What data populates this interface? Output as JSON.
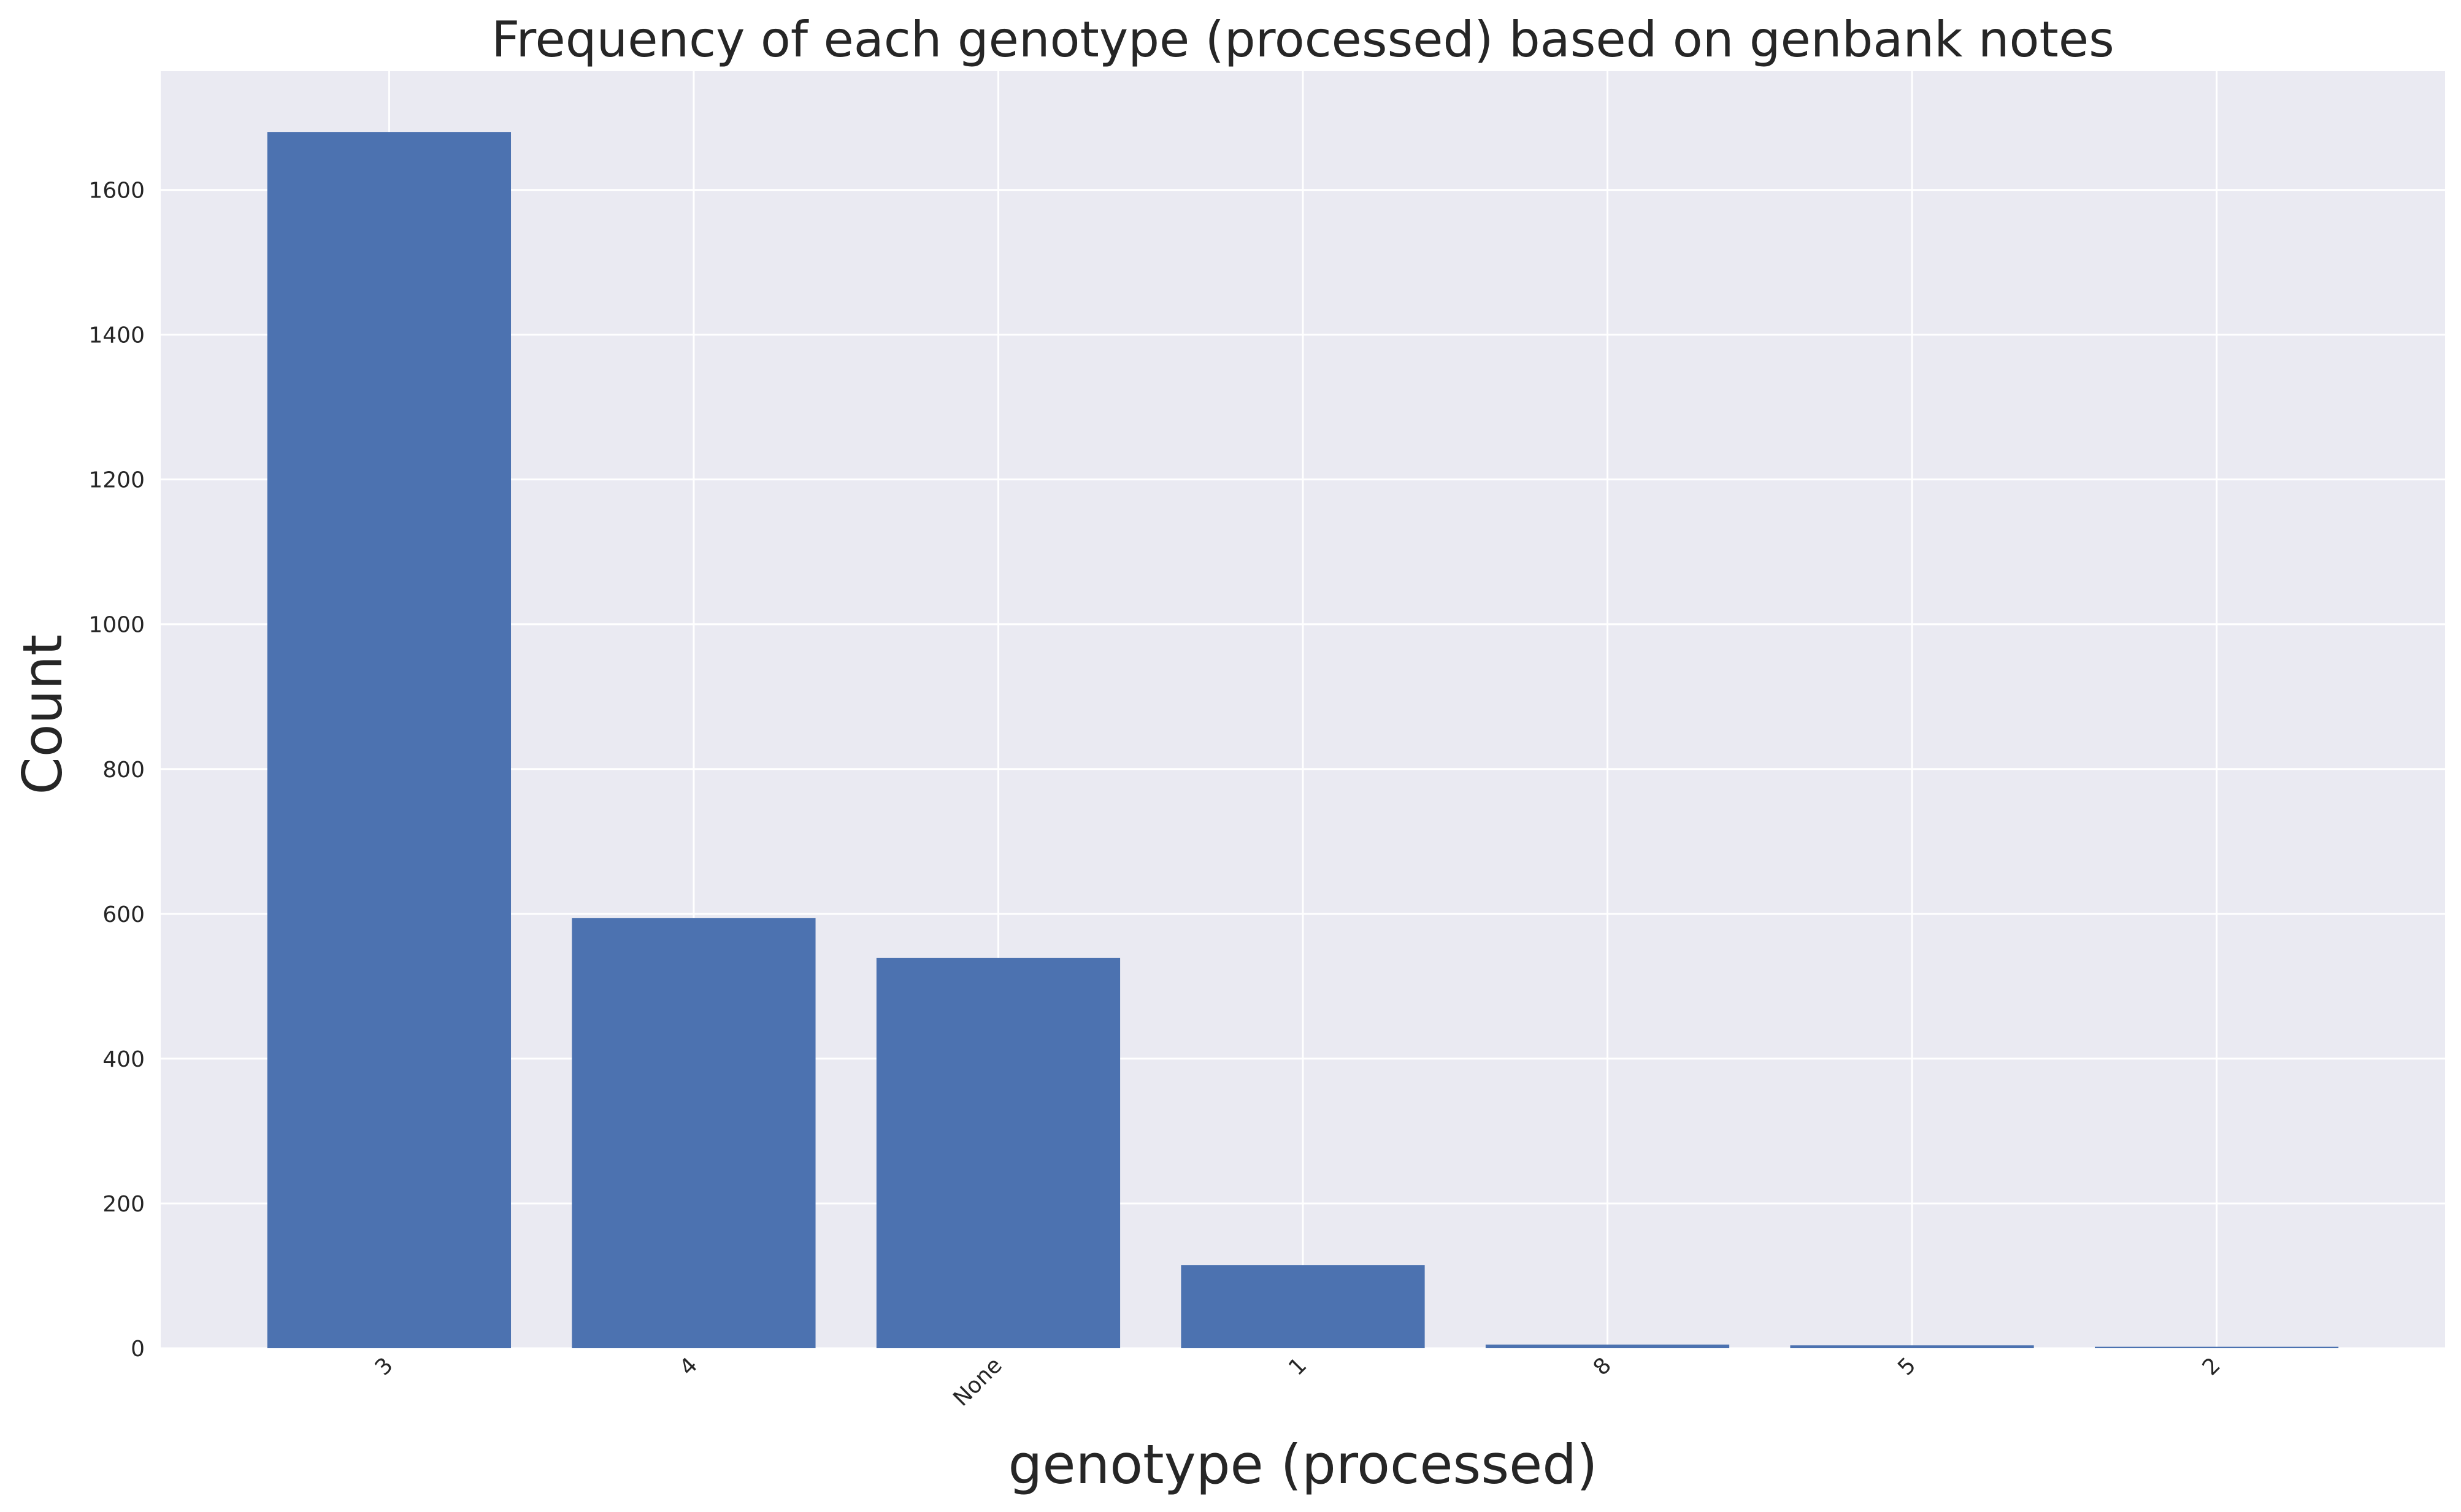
{
  "chart_data": {
    "type": "bar",
    "title": "Frequency of each genotype (processed) based on genbank notes",
    "xlabel": "genotype (processed)",
    "ylabel": "Count",
    "categories": [
      "3",
      "4",
      "None",
      "1",
      "8",
      "5",
      "2"
    ],
    "values": [
      1680,
      594,
      539,
      115,
      5,
      4,
      2
    ],
    "yticks": [
      0,
      200,
      400,
      600,
      800,
      1000,
      1200,
      1400,
      1600
    ],
    "ylim": [
      0,
      1764
    ],
    "grid": true,
    "bar_color": "#4c72b0",
    "plot_background": "#eaeaf2",
    "grid_color": "#ffffff"
  }
}
